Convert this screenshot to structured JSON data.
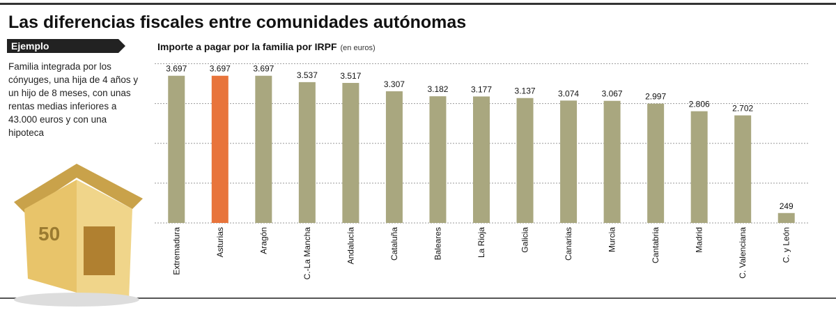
{
  "chart_data": {
    "type": "bar",
    "title": "Las diferencias fiscales entre comunidades autónomas",
    "label": "Ejemplo",
    "description": "Familia integrada por los cónyuges, una hija de 4 años y un hijo de 8 meses, con unas rentas medias inferiores a 43.000 euros y con una hipoteca",
    "subtitle": "Importe a pagar por la familia por IRPF",
    "unit": "(en euros)",
    "categories": [
      "Extremadura",
      "Asturias",
      "Aragón",
      "C.-La Mancha",
      "Andalucía",
      "Cataluña",
      "Baleares",
      "La Rioja",
      "Galicia",
      "Canarias",
      "Murcia",
      "Cantabria",
      "Madrid",
      "C. Valenciana",
      "C. y León"
    ],
    "values": [
      3697,
      3697,
      3697,
      3537,
      3517,
      3307,
      3182,
      3177,
      3137,
      3074,
      3067,
      2997,
      2806,
      2702,
      249
    ],
    "value_labels": [
      "3.697",
      "3.697",
      "3.697",
      "3.537",
      "3.517",
      "3.307",
      "3.182",
      "3.177",
      "3.137",
      "3.074",
      "3.067",
      "2.997",
      "2.806",
      "2.702",
      "249"
    ],
    "colors": [
      "#a9a77f",
      "#e8743b",
      "#a9a77f",
      "#a9a77f",
      "#a9a77f",
      "#a9a77f",
      "#a9a77f",
      "#a9a77f",
      "#a9a77f",
      "#a9a77f",
      "#a9a77f",
      "#a9a77f",
      "#a9a77f",
      "#a9a77f",
      "#a9a77f"
    ],
    "ylim": [
      0,
      4200
    ],
    "yticks": [
      0,
      1000,
      2000,
      3000,
      4000
    ],
    "grid": true
  }
}
